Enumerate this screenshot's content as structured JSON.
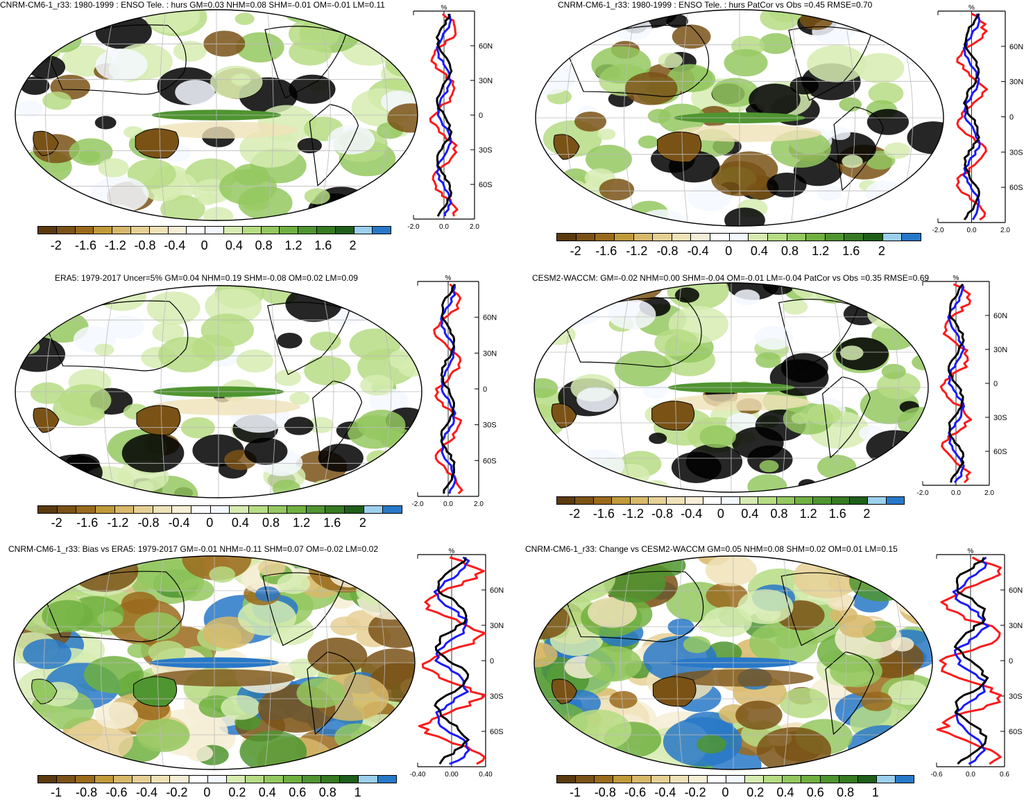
{
  "colors": {
    "ocean_fill": "#ffffff",
    "coast": "#000000",
    "grid": "#bbbbbb",
    "line_model": "#1a1aff",
    "line_obs": "#ff1a1a",
    "line_mean": "#000000",
    "palette": [
      "#5a3a0e",
      "#7a5216",
      "#9a6a1c",
      "#c09a3a",
      "#d8b86a",
      "#e6d095",
      "#f0e2b8",
      "#f6eed6",
      "#ffffff",
      "#f4f8ff",
      "#d6ecb2",
      "#b6dc84",
      "#94c860",
      "#70b040",
      "#4f9530",
      "#367a22",
      "#1e5e1a",
      "#9cd0ee",
      "#2878c8"
    ]
  },
  "panels": [
    {
      "id": "p1",
      "title": "CNRM-CM6-1_r33: 1980-1999 : ENSO Tele. : hurs GM=0.03 NHM=0.08 SHM=-0.01 OM=-0.01 LM=0.11",
      "colorbar_labels": [
        "-2",
        "-1.6",
        "-1.2",
        "-0.8",
        "-0.4",
        "0",
        "0.4",
        "0.8",
        "1.2",
        "1.6",
        "2"
      ],
      "profile_unit": "%",
      "profile_ticks_x": [
        "-2.0",
        "0.0",
        "2.0"
      ],
      "profile_ticks_y": [
        "60N",
        "30N",
        "0",
        "30S",
        "60S"
      ]
    },
    {
      "id": "p2",
      "title": "CNRM-CM6-1_r33: 1980-1999 : ENSO Tele. : hurs PatCor vs Obs =0.45 RMSE=0.70",
      "colorbar_labels": [
        "-2",
        "-1.6",
        "-1.2",
        "-0.8",
        "-0.4",
        "0",
        "0.4",
        "0.8",
        "1.2",
        "1.6",
        "2"
      ],
      "profile_unit": "%",
      "profile_ticks_x": [
        "-2.0",
        "0.0",
        "2.0"
      ],
      "profile_ticks_y": [
        "60N",
        "30N",
        "0",
        "30S",
        "60S"
      ]
    },
    {
      "id": "p3",
      "title": "ERA5: 1979-2017 Uncer=5% GM=0.04 NHM=0.19 SHM=-0.08 OM=0.02 LM=0.09",
      "colorbar_labels": [
        "-2",
        "-1.6",
        "-1.2",
        "-0.8",
        "-0.4",
        "0",
        "0.4",
        "0.8",
        "1.2",
        "1.6",
        "2"
      ],
      "profile_unit": "%",
      "profile_ticks_x": [
        "-2.0",
        "0.0",
        "2.0"
      ],
      "profile_ticks_y": [
        "60N",
        "30N",
        "0",
        "30S",
        "60S"
      ]
    },
    {
      "id": "p4",
      "title": "CESM2-WACCM: GM=-0.02 NHM=0.00 SHM=-0.04 OM=-0.01 LM=-0.04 PatCor vs Obs =0.35 RMSE=0.69",
      "colorbar_labels": [
        "-2",
        "-1.6",
        "-1.2",
        "-0.8",
        "-0.4",
        "0",
        "0.4",
        "0.8",
        "1.2",
        "1.6",
        "2"
      ],
      "profile_unit": "%",
      "profile_ticks_x": [
        "-2.0",
        "0.0",
        "2.0"
      ],
      "profile_ticks_y": [
        "60N",
        "30N",
        "0",
        "30S",
        "60S"
      ]
    },
    {
      "id": "p5",
      "title": "CNRM-CM6-1_r33: Bias vs ERA5: 1979-2017 GM=-0.01 NHM=-0.11 SHM=0.07 OM=-0.02 LM=0.02",
      "colorbar_labels": [
        "-1",
        "-0.8",
        "-0.6",
        "-0.4",
        "-0.2",
        "0",
        "0.2",
        "0.4",
        "0.6",
        "0.8",
        "1"
      ],
      "profile_unit": "%",
      "profile_ticks_x": [
        "-0.40",
        "0.00",
        "0.40"
      ],
      "profile_ticks_y": [
        "60N",
        "30N",
        "0",
        "30S",
        "60S"
      ]
    },
    {
      "id": "p6",
      "title": "CNRM-CM6-1_r33: Change vs CESM2-WACCM GM=0.05 NHM=0.08 SHM=0.02 OM=0.01 LM=0.15",
      "colorbar_labels": [
        "-1",
        "-0.8",
        "-0.6",
        "-0.4",
        "-0.2",
        "0",
        "0.2",
        "0.4",
        "0.6",
        "0.8",
        "1"
      ],
      "profile_unit": "%",
      "profile_ticks_x": [
        "-0.6",
        "0.0",
        "0.6"
      ],
      "profile_ticks_y": [
        "60N",
        "30N",
        "0",
        "30S",
        "60S"
      ]
    }
  ]
}
